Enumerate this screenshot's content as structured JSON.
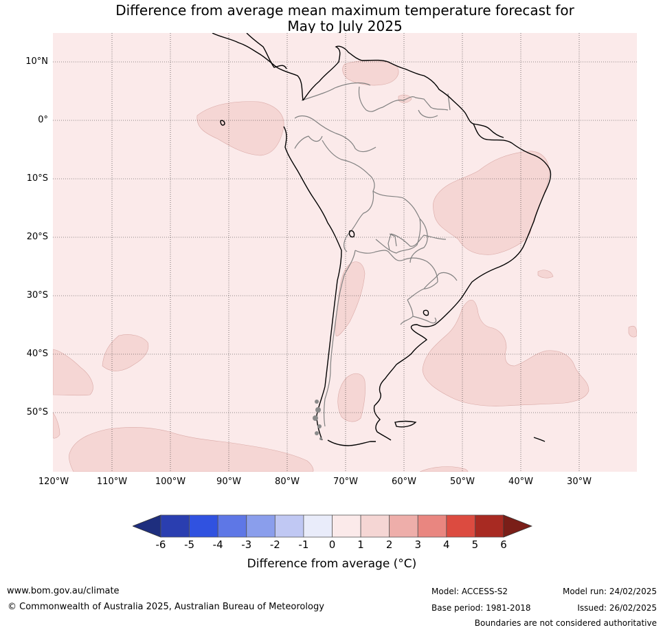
{
  "title": {
    "line1": "Difference from average mean maximum temperature forecast for",
    "line2": "May to July 2025"
  },
  "map": {
    "lat_labels": [
      "10°N",
      "0°",
      "10°S",
      "20°S",
      "30°S",
      "40°S",
      "50°S"
    ],
    "lon_labels": [
      "120°W",
      "110°W",
      "100°W",
      "90°W",
      "80°W",
      "70°W",
      "60°W",
      "50°W",
      "40°W",
      "30°W"
    ],
    "background_category": "0 to 1",
    "anomaly_regions": [
      {
        "location": "northern Venezuela",
        "category": "1 to 2"
      },
      {
        "location": "Pacific near Galapagos",
        "category": "1 to 2"
      },
      {
        "location": "eastern Brazil",
        "category": "1 to 2"
      },
      {
        "location": "central Argentina",
        "category": "1 to 2"
      },
      {
        "location": "southern Patagonia",
        "category": "1 to 2"
      },
      {
        "location": "South Atlantic off Uruguay/Argentina",
        "category": "1 to 2"
      },
      {
        "location": "South Pacific 40-45°S",
        "category": "1 to 2"
      },
      {
        "location": "South Pacific 55-60°S",
        "category": "1 to 2"
      }
    ],
    "colors": {
      "ocean_land_0_1": "#fbeaea",
      "anomaly_1_2": "#f5d6d4",
      "coastline": "#000000",
      "borders": "#808080"
    }
  },
  "colorbar": {
    "ticks": [
      "-6",
      "-5",
      "-4",
      "-3",
      "-2",
      "-1",
      "0",
      "1",
      "2",
      "3",
      "4",
      "5",
      "6"
    ],
    "colors": [
      "#2a3eb0",
      "#3052e0",
      "#5e77e6",
      "#8a9eec",
      "#c0c8f3",
      "#e9ecfa",
      "#fbeaea",
      "#f5d6d4",
      "#eeaeaa",
      "#e98680",
      "#dc4b40",
      "#a82a22"
    ],
    "under_color": "#1e2e7e",
    "over_color": "#7a1e18",
    "label": "Difference from average (°C)"
  },
  "footer": {
    "website": "www.bom.gov.au/climate",
    "copyright": "© Commonwealth of Australia 2025, Australian Bureau of Meteorology",
    "model": "Model: ACCESS-S2",
    "base_period": "Base period: 1981-2018",
    "model_run": "Model run: 24/02/2025",
    "issued": "Issued: 26/02/2025",
    "disclaimer": "Boundaries are not considered authoritative"
  }
}
